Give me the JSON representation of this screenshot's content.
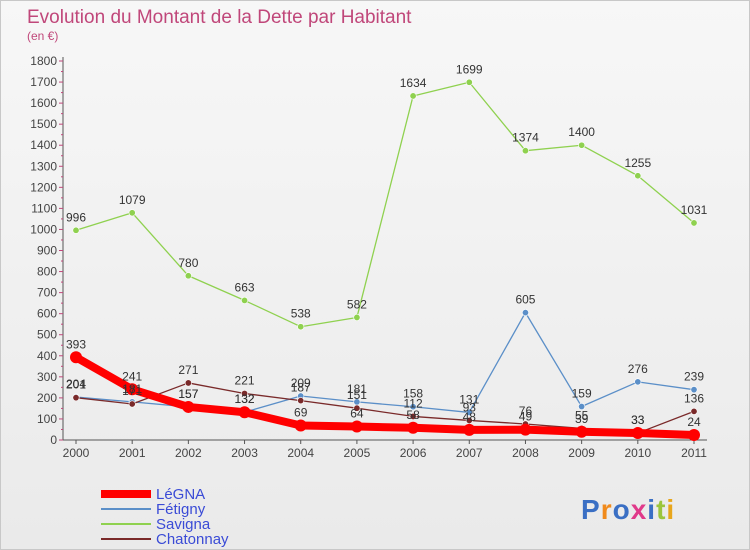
{
  "chart_data": {
    "type": "line",
    "title": "Evolution du Montant de la Dette par Habitant",
    "subtitle": "(en €)",
    "x": [
      "2000",
      "2001",
      "2002",
      "2003",
      "2004",
      "2005",
      "2006",
      "2007",
      "2008",
      "2009",
      "2010",
      "2011"
    ],
    "ylim": [
      0,
      1800
    ],
    "yticks": [
      0,
      100,
      200,
      300,
      400,
      500,
      600,
      700,
      800,
      900,
      1000,
      1100,
      1200,
      1300,
      1400,
      1500,
      1600,
      1700,
      1800
    ],
    "grid": false,
    "legend_position": "bottom-left",
    "series": [
      {
        "name": "LéGNA",
        "color": "#ff0000",
        "values": [
          393,
          241,
          157,
          132,
          69,
          64,
          58,
          48,
          49,
          39,
          33,
          24
        ]
      },
      {
        "name": "Fétigny",
        "color": "#5b8fc8",
        "values": [
          204,
          181,
          157,
          132,
          209,
          181,
          158,
          131,
          605,
          159,
          276,
          239
        ]
      },
      {
        "name": "Savigna",
        "color": "#8fd14f",
        "values": [
          996,
          1079,
          780,
          663,
          538,
          582,
          1634,
          1699,
          1374,
          1400,
          1255,
          1031
        ]
      },
      {
        "name": "Chatonnay",
        "color": "#7a2a2a",
        "values": [
          201,
          171,
          271,
          221,
          187,
          151,
          112,
          93,
          76,
          55,
          33,
          136
        ]
      }
    ],
    "logo": {
      "text": "Proxiti",
      "colors": [
        "#3a6fc4",
        "#f08a1c",
        "#3a6fc4",
        "#e03a8a",
        "#3a6fc4",
        "#9bc53d",
        "#e8a61c"
      ]
    }
  }
}
